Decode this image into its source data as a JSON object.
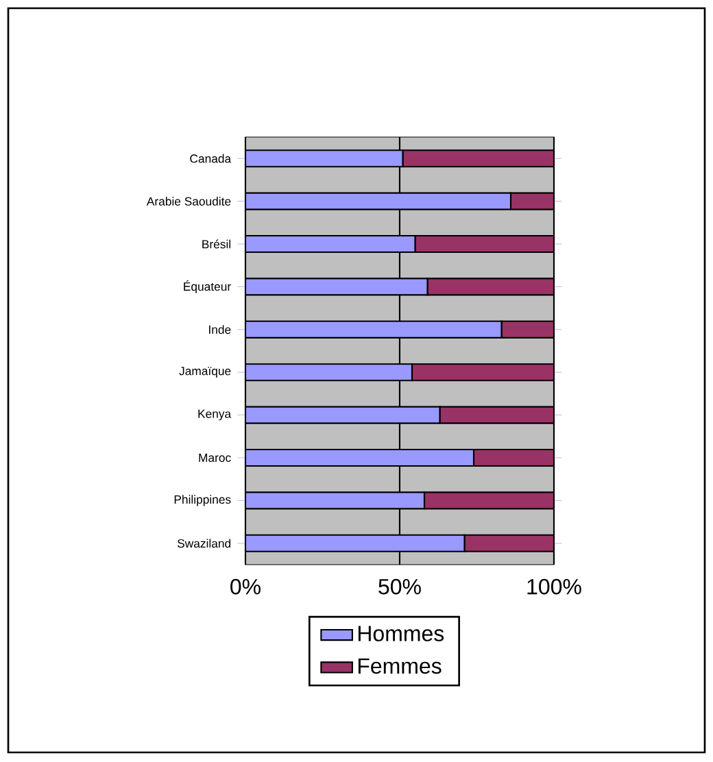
{
  "chart_data": {
    "type": "bar",
    "orientation": "horizontal",
    "stacked": true,
    "categories": [
      "Canada",
      "Arabie Saoudite",
      "Brésil",
      "Équateur",
      "Inde",
      "Jamaïque",
      "Kenya",
      "Maroc",
      "Philippines",
      "Swaziland"
    ],
    "series": [
      {
        "name": "Hommes",
        "color": "#9999ff",
        "values": [
          51,
          86,
          55,
          59,
          83,
          54,
          63,
          74,
          58,
          71
        ]
      },
      {
        "name": "Femmes",
        "color": "#993366",
        "values": [
          49,
          14,
          45,
          41,
          17,
          46,
          37,
          26,
          42,
          29
        ]
      }
    ],
    "xlim": [
      0,
      100
    ],
    "xticks": [
      {
        "value": 0,
        "label": "0%"
      },
      {
        "value": 50,
        "label": "50%"
      },
      {
        "value": 100,
        "label": "100%"
      }
    ],
    "grid": "x",
    "legend": "bottom"
  }
}
